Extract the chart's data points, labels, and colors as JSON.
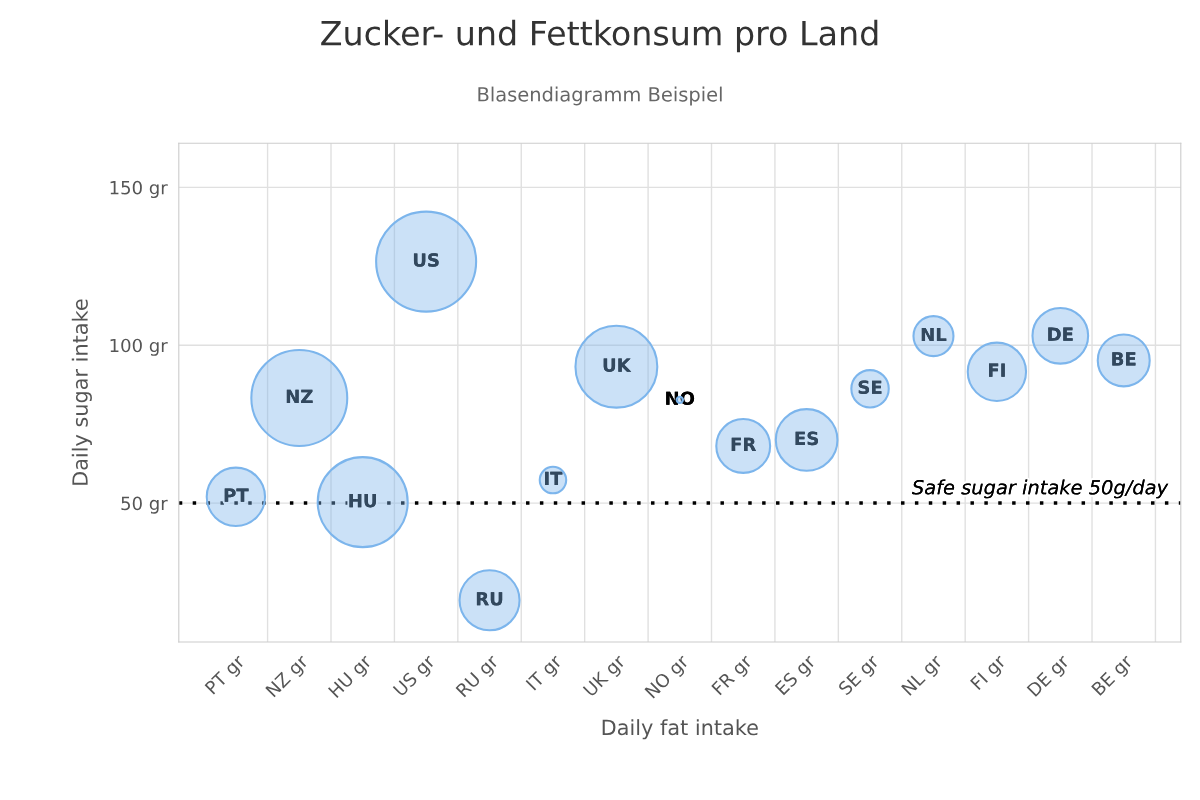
{
  "chart_data": {
    "type": "bubble",
    "title": "Zucker- und Fettkonsum pro Land",
    "subtitle": "Blasendiagramm Beispiel",
    "xlabel": "Daily fat intake",
    "ylabel": "Daily sugar intake",
    "categories": [
      "PT gr",
      "NZ gr",
      "HU gr",
      "US gr",
      "RU gr",
      "IT gr",
      "UK gr",
      "NO gr",
      "FR gr",
      "ES gr",
      "SE gr",
      "NL gr",
      "FI gr",
      "DE gr",
      "BE gr"
    ],
    "values": [
      52,
      83.3,
      50.3,
      126.5,
      19.2,
      57.3,
      93.2,
      82.7,
      68.1,
      70,
      86.2,
      102.9,
      91.6,
      103,
      95.2
    ],
    "sizes": [
      0.34,
      0.92,
      0.81,
      1,
      0.36,
      0.07,
      0.67,
      0.004,
      0.29,
      0.38,
      0.14,
      0.16,
      0.34,
      0.31,
      0.27
    ],
    "value_labels": [
      "PT",
      "NZ",
      "HU",
      "US",
      "RU",
      "IT",
      "UK",
      "NO",
      "FR",
      "ES",
      "SE",
      "NL",
      "FI",
      "DE",
      "BE"
    ],
    "color": "#7cb5ec",
    "ylim": [
      6,
      164
    ],
    "yticks": [
      {
        "value": 50,
        "label": "50 gr"
      },
      {
        "value": 100,
        "label": "100 gr"
      },
      {
        "value": 150,
        "label": "150 gr"
      }
    ],
    "ref_lines": [
      {
        "axis": "y",
        "value": 50,
        "label": "Safe sugar intake 50g/day",
        "color": "#000000",
        "line_style": "dotted"
      }
    ],
    "grid": true
  }
}
